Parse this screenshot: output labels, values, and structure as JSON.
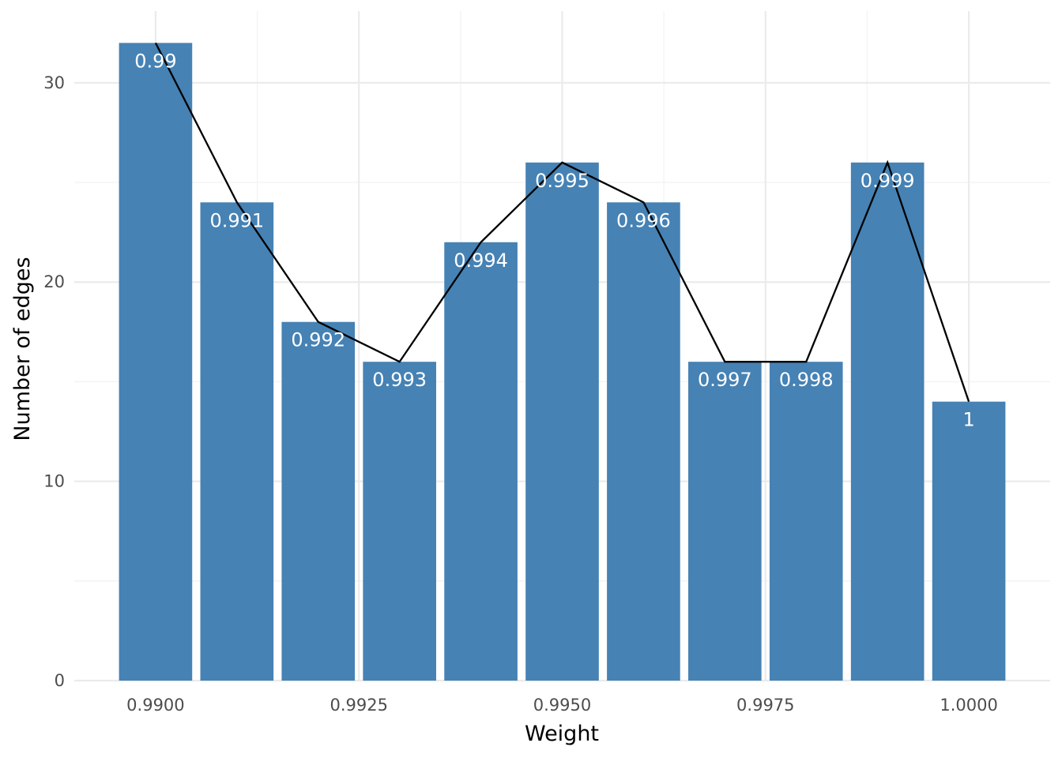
{
  "chart_data": {
    "type": "bar",
    "xlabel": "Weight",
    "ylabel": "Number of edges",
    "x": [
      0.99,
      0.991,
      0.992,
      0.993,
      0.994,
      0.995,
      0.996,
      0.997,
      0.998,
      0.999,
      1.0
    ],
    "values": [
      32,
      24,
      18,
      16,
      22,
      26,
      24,
      16,
      16,
      26,
      14
    ],
    "labels": [
      "0.99",
      "0.991",
      "0.992",
      "0.993",
      "0.994",
      "0.995",
      "0.996",
      "0.997",
      "0.998",
      "0.999",
      "1"
    ],
    "line_overlay": true,
    "xlim": [
      0.989,
      1.001
    ],
    "ylim": [
      0,
      33.6
    ],
    "x_ticks": [
      0.99,
      0.9925,
      0.995,
      0.9975,
      1.0
    ],
    "x_tick_labels": [
      "0.9900",
      "0.9925",
      "0.9950",
      "0.9975",
      "1.0000"
    ],
    "y_ticks": [
      0,
      10,
      20,
      30
    ],
    "y_tick_labels": [
      "0",
      "10",
      "20",
      "30"
    ],
    "grid": true,
    "colors": {
      "bar": "#4682b4",
      "line": "#000000",
      "label": "#ffffff"
    }
  }
}
